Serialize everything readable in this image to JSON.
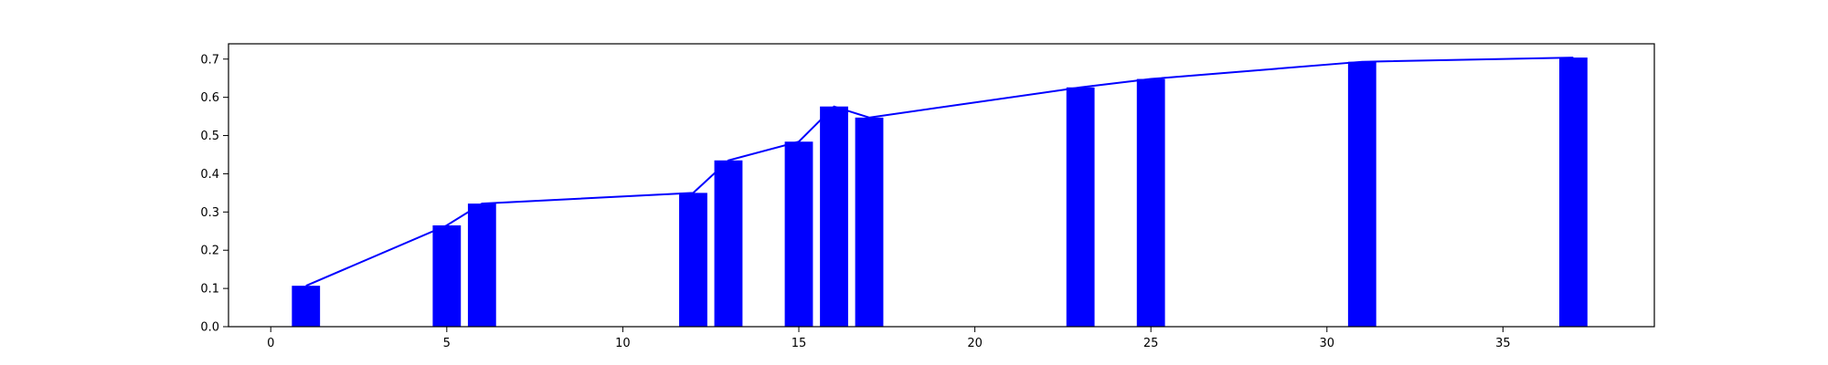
{
  "chart_data": {
    "type": "bar",
    "x": [
      1,
      5,
      6,
      12,
      13,
      15,
      16,
      17,
      23,
      25,
      31,
      37
    ],
    "values": [
      0.107,
      0.265,
      0.322,
      0.35,
      0.435,
      0.484,
      0.576,
      0.547,
      0.626,
      0.648,
      0.693,
      0.704
    ],
    "line": {
      "x": [
        1,
        5,
        6,
        12,
        13,
        15,
        16,
        17,
        23,
        25,
        31,
        37
      ],
      "y": [
        0.107,
        0.265,
        0.322,
        0.35,
        0.435,
        0.484,
        0.576,
        0.547,
        0.626,
        0.648,
        0.693,
        0.704
      ]
    },
    "bar_width": 0.8,
    "xlim": [
      -1.2,
      39.3
    ],
    "ylim": [
      0.0,
      0.74
    ],
    "xticks": [
      "0",
      "5",
      "10",
      "15",
      "20",
      "25",
      "30",
      "35"
    ],
    "xtick_values": [
      0,
      5,
      10,
      15,
      20,
      25,
      30,
      35
    ],
    "yticks": [
      "0.0",
      "0.1",
      "0.2",
      "0.3",
      "0.4",
      "0.5",
      "0.6",
      "0.7"
    ],
    "ytick_values": [
      0.0,
      0.1,
      0.2,
      0.3,
      0.4,
      0.5,
      0.6,
      0.7
    ],
    "title": "",
    "xlabel": "",
    "ylabel": "",
    "grid": false,
    "bar_color": "#0000ff",
    "line_color": "#0000ff"
  }
}
